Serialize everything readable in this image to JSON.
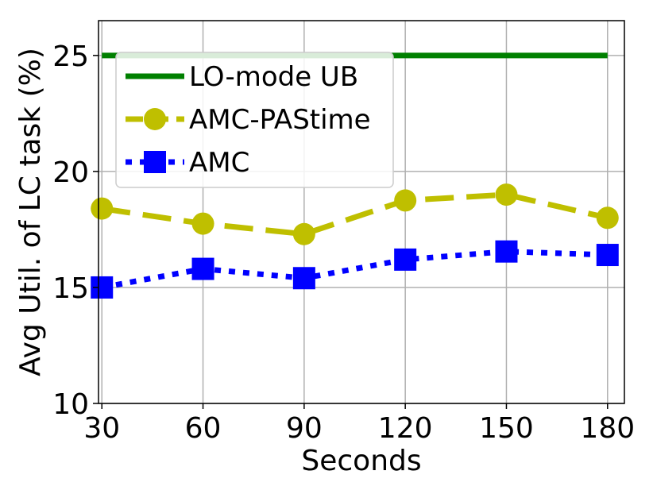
{
  "chart_data": {
    "type": "line",
    "xlabel": "Seconds",
    "ylabel": "Avg Util. of LC task (%)",
    "x": [
      30,
      60,
      90,
      120,
      150,
      180
    ],
    "xlim": [
      29,
      185
    ],
    "ylim": [
      10,
      26.5
    ],
    "xticks": [
      "30",
      "60",
      "90",
      "120",
      "150",
      "180"
    ],
    "yticks": [
      "10",
      "15",
      "20",
      "25"
    ],
    "grid": true,
    "legend_position": "upper-left",
    "series": [
      {
        "name": "LO-mode UB",
        "values": [
          25,
          25,
          25,
          25,
          25,
          25
        ],
        "color": "#008000",
        "style": "solid",
        "marker": "none"
      },
      {
        "name": "AMC-PAStime",
        "values": [
          18.4,
          17.75,
          17.3,
          18.75,
          19.0,
          18.0
        ],
        "color": "#bfbf00",
        "style": "dashed",
        "marker": "circle"
      },
      {
        "name": "AMC",
        "values": [
          15.0,
          15.8,
          15.4,
          16.2,
          16.55,
          16.4
        ],
        "color": "#0000ff",
        "style": "dotted",
        "marker": "square"
      }
    ]
  }
}
